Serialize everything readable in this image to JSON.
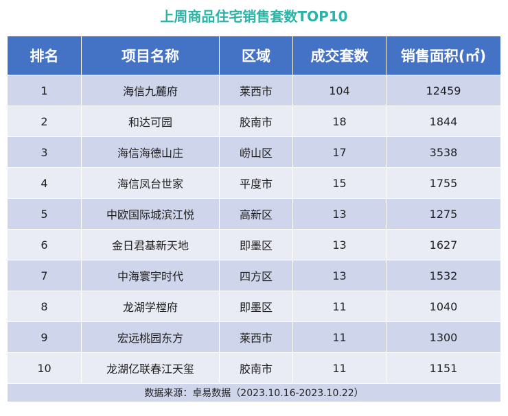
{
  "title": "上周商品住宅销售套数TOP10",
  "header": {
    "rank": "排名",
    "project": "项目名称",
    "district": "区域",
    "units": "成交套数",
    "area": "销售面积(㎡)"
  },
  "rows": [
    {
      "rank": "1",
      "project": "海信九麓府",
      "district": "莱西市",
      "units": "104",
      "area": "12459"
    },
    {
      "rank": "2",
      "project": "和达可园",
      "district": "胶南市",
      "units": "18",
      "area": "1844"
    },
    {
      "rank": "3",
      "project": "海信海德山庄",
      "district": "崂山区",
      "units": "17",
      "area": "3538"
    },
    {
      "rank": "4",
      "project": "海信凤台世家",
      "district": "平度市",
      "units": "15",
      "area": "1755"
    },
    {
      "rank": "5",
      "project": "中欧国际城滨江悦",
      "district": "高新区",
      "units": "13",
      "area": "1275"
    },
    {
      "rank": "6",
      "project": "金日君基新天地",
      "district": "即墨区",
      "units": "13",
      "area": "1627"
    },
    {
      "rank": "7",
      "project": "中海寰宇时代",
      "district": "四方区",
      "units": "13",
      "area": "1532"
    },
    {
      "rank": "8",
      "project": "龙湖学樘府",
      "district": "即墨区",
      "units": "11",
      "area": "1040"
    },
    {
      "rank": "9",
      "project": "宏远桃园东方",
      "district": "莱西市",
      "units": "11",
      "area": "1300"
    },
    {
      "rank": "10",
      "project": "龙湖亿联春江天玺",
      "district": "胶南市",
      "units": "11",
      "area": "1151"
    }
  ],
  "footer": "数据来源：卓易数据（2023.10.16-2023.10.22）",
  "colors": {
    "title": "#2bb3a7",
    "header_bg": "#4472c4",
    "row_dark": "#cfd5ea",
    "row_light": "#e9ebf5"
  }
}
